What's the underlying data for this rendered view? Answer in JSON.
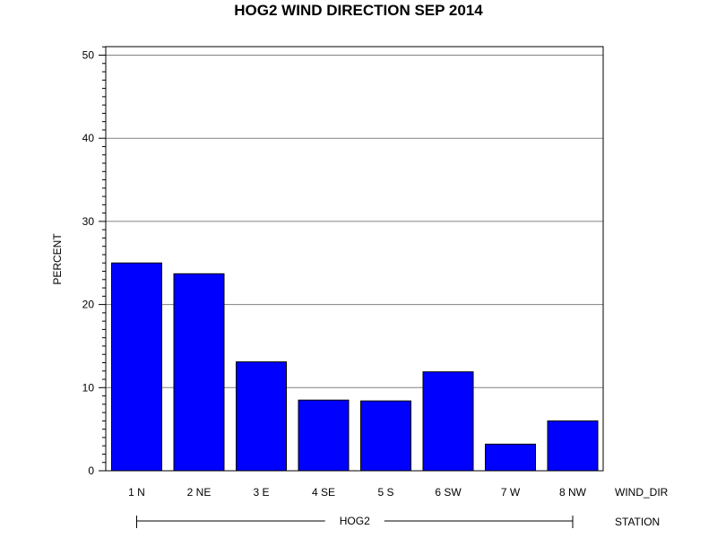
{
  "chart_data": {
    "type": "bar",
    "title": "HOG2 WIND DIRECTION SEP 2014",
    "ylabel": "PERCENT",
    "xlabel": "WIND_DIR",
    "group_axis_label": "STATION",
    "group_label": "HOG2",
    "categories": [
      "1 N",
      "2 NE",
      "3 E",
      "4 SE",
      "5 S",
      "6 SW",
      "7 W",
      "8 NW"
    ],
    "values": [
      25.0,
      23.7,
      13.1,
      8.5,
      8.4,
      11.9,
      3.2,
      6.0
    ],
    "ylim": [
      0,
      51
    ],
    "yticks": [
      0,
      10,
      20,
      30,
      40,
      50
    ],
    "grid": true,
    "bar_color": "#0000ff"
  }
}
